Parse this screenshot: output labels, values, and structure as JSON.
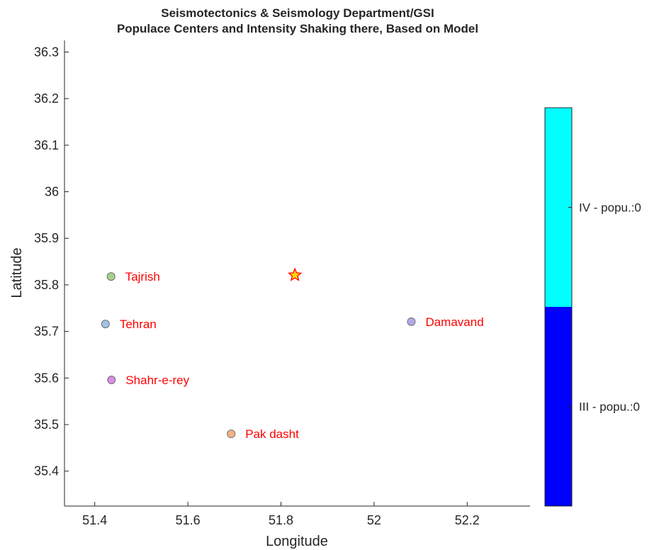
{
  "chart_data": {
    "type": "scatter",
    "title_lines": [
      "Seismotectonics & Seismology Department/GSI",
      "Populace Centers and Intensity Shaking there, Based on Model"
    ],
    "xlabel": "Longitude",
    "ylabel": "Latitude",
    "xlim": [
      51.335,
      52.335
    ],
    "ylim": [
      35.325,
      36.325
    ],
    "xticks": [
      51.4,
      51.6,
      51.8,
      52,
      52.2
    ],
    "xtick_labels": [
      "51.4",
      "51.6",
      "51.8",
      "52",
      "52.2"
    ],
    "yticks": [
      35.4,
      35.5,
      35.6,
      35.7,
      35.8,
      35.9,
      36,
      36.1,
      36.2,
      36.3
    ],
    "ytick_labels": [
      "35.4",
      "35.5",
      "35.6",
      "35.7",
      "35.8",
      "35.9",
      "36",
      "36.1",
      "36.2",
      "36.3"
    ],
    "cities": [
      {
        "name": "Tajrish",
        "lon": 51.435,
        "lat": 35.818,
        "color": "#a9d18e"
      },
      {
        "name": "Tehran",
        "lon": 51.423,
        "lat": 35.716,
        "color": "#9dc3e6"
      },
      {
        "name": "Shahr-e-rey",
        "lon": 51.436,
        "lat": 35.596,
        "color": "#d98ee8"
      },
      {
        "name": "Pak dasht",
        "lon": 51.693,
        "lat": 35.48,
        "color": "#f4b183"
      },
      {
        "name": "Damavand",
        "lon": 52.08,
        "lat": 35.721,
        "color": "#b4a7e8"
      }
    ],
    "epicenter": {
      "lon": 51.83,
      "lat": 35.821,
      "fill": "#ffd700",
      "stroke": "#ff0000"
    },
    "colorbar": {
      "segments": [
        {
          "label": "III - popu.:0",
          "color": "#0000ff"
        },
        {
          "label": "IV - popu.:0",
          "color": "#00ffff"
        }
      ]
    }
  }
}
